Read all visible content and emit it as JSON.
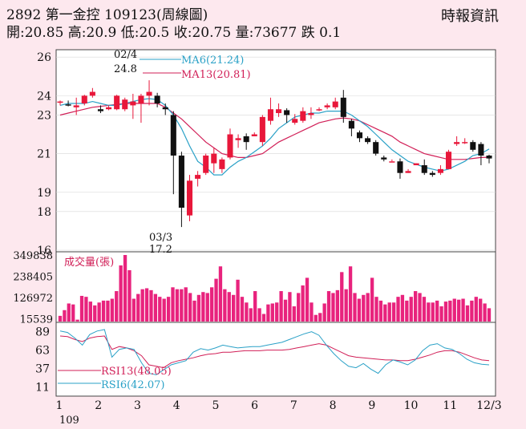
{
  "header": {
    "line1": "2892  第一金控 109123(周線圖)",
    "line2": "開:20.85 高:20.9 低:20.5 收:20.75 量:73677 跌 0.1",
    "brand": "時報資訊"
  },
  "colors": {
    "up": "#e8173a",
    "down": "#111111",
    "ma6": "#2aa1c7",
    "ma13": "#d11f57",
    "volume": "#e8237d",
    "background": "#fde8ee"
  },
  "chart_data": [
    {
      "type": "candlestick",
      "yticks": [
        16,
        18,
        19,
        21,
        23,
        24,
        26
      ],
      "ylim": [
        16,
        26.3
      ],
      "annotations": [
        {
          "text": "02/4",
          "week": 11
        },
        {
          "text": "24.8",
          "week": 11
        },
        {
          "text": "03/3",
          "week": 16
        },
        {
          "text": "17.2",
          "week": 16
        }
      ],
      "legend": [
        {
          "label": "MA6(21.24)",
          "color": "#2aa1c7"
        },
        {
          "label": "MA13(20.81)",
          "color": "#d11f57"
        }
      ],
      "candles": [
        [
          23.65,
          23.75,
          23.5,
          23.7
        ],
        [
          23.55,
          23.75,
          23.45,
          23.5
        ],
        [
          23.4,
          23.9,
          23.0,
          23.5
        ],
        [
          23.6,
          24.05,
          23.5,
          24.0
        ],
        [
          24.0,
          24.4,
          23.9,
          24.2
        ],
        [
          23.3,
          23.5,
          23.1,
          23.2
        ],
        [
          23.3,
          23.5,
          23.25,
          23.4
        ],
        [
          23.3,
          24.05,
          23.25,
          24.0
        ],
        [
          23.3,
          23.9,
          23.2,
          23.8
        ],
        [
          23.5,
          24.1,
          22.8,
          23.7
        ],
        [
          23.6,
          24.1,
          22.6,
          24.0
        ],
        [
          24.0,
          24.8,
          23.5,
          24.2
        ],
        [
          24.0,
          24.15,
          23.4,
          23.6
        ],
        [
          23.4,
          23.6,
          23.0,
          23.3
        ],
        [
          23.0,
          23.2,
          18.9,
          20.9
        ],
        [
          20.9,
          21.1,
          17.2,
          18.2
        ],
        [
          17.8,
          19.9,
          17.5,
          19.6
        ],
        [
          19.7,
          20.1,
          19.3,
          19.9
        ],
        [
          20.0,
          21.0,
          19.9,
          20.9
        ],
        [
          20.5,
          21.3,
          20.0,
          21.0
        ],
        [
          20.2,
          20.8,
          20.0,
          20.7
        ],
        [
          20.8,
          22.3,
          20.7,
          22.0
        ],
        [
          21.7,
          22.0,
          21.3,
          21.8
        ],
        [
          21.9,
          22.05,
          21.2,
          21.6
        ],
        [
          21.9,
          22.1,
          21.9,
          22.0
        ],
        [
          21.6,
          23.0,
          21.4,
          22.9
        ],
        [
          22.7,
          23.9,
          22.5,
          23.3
        ],
        [
          23.1,
          23.6,
          22.9,
          23.3
        ],
        [
          23.25,
          23.35,
          22.6,
          23.0
        ],
        [
          22.6,
          23.05,
          22.5,
          22.8
        ],
        [
          22.7,
          23.4,
          22.6,
          23.2
        ],
        [
          23.0,
          23.4,
          22.8,
          23.1
        ],
        [
          23.3,
          23.4,
          23.2,
          23.3
        ],
        [
          23.4,
          23.6,
          23.3,
          23.5
        ],
        [
          23.4,
          23.9,
          23.3,
          23.7
        ],
        [
          23.9,
          24.3,
          22.6,
          22.9
        ],
        [
          22.7,
          22.8,
          21.9,
          22.3
        ],
        [
          22.1,
          22.2,
          21.6,
          21.8
        ],
        [
          21.8,
          21.9,
          21.5,
          21.6
        ],
        [
          21.6,
          21.7,
          20.9,
          21.0
        ],
        [
          20.8,
          20.9,
          20.6,
          20.7
        ],
        [
          20.6,
          20.7,
          20.6,
          20.6
        ],
        [
          20.6,
          20.75,
          19.7,
          20.0
        ],
        [
          20.0,
          20.2,
          20.0,
          20.1
        ],
        [
          20.4,
          20.5,
          20.4,
          20.5
        ],
        [
          20.4,
          20.7,
          19.9,
          20.0
        ],
        [
          20.0,
          20.1,
          19.8,
          19.9
        ],
        [
          20.0,
          20.4,
          19.9,
          20.2
        ],
        [
          20.2,
          21.2,
          20.2,
          21.1
        ],
        [
          21.5,
          21.9,
          21.4,
          21.6
        ],
        [
          21.6,
          21.8,
          21.5,
          21.6
        ],
        [
          21.6,
          21.7,
          21.1,
          21.2
        ],
        [
          21.5,
          21.6,
          20.4,
          20.9
        ],
        [
          20.9,
          20.95,
          20.5,
          20.75
        ]
      ],
      "ma6": [
        23.5,
        23.6,
        23.6,
        23.6,
        23.7,
        23.6,
        23.5,
        23.5,
        23.6,
        23.7,
        23.8,
        23.85,
        23.8,
        23.5,
        23.0,
        22.3,
        21.4,
        20.6,
        20.3,
        19.9,
        19.9,
        20.3,
        20.6,
        20.8,
        21.1,
        21.4,
        21.8,
        22.3,
        22.6,
        22.9,
        23.0,
        23.1,
        23.1,
        23.2,
        23.2,
        23.2,
        23.0,
        22.7,
        22.4,
        22.0,
        21.6,
        21.2,
        20.9,
        20.6,
        20.45,
        20.3,
        20.2,
        20.1,
        20.2,
        20.4,
        20.6,
        20.9,
        21.0,
        21.24
      ],
      "ma13": [
        23.0,
        23.1,
        23.2,
        23.3,
        23.4,
        23.45,
        23.5,
        23.55,
        23.6,
        23.6,
        23.6,
        23.6,
        23.6,
        23.4,
        23.1,
        22.8,
        22.4,
        22.0,
        21.6,
        21.3,
        21.0,
        20.9,
        20.8,
        20.8,
        20.9,
        21.0,
        21.3,
        21.6,
        21.8,
        22.0,
        22.2,
        22.4,
        22.6,
        22.7,
        22.8,
        22.85,
        22.8,
        22.7,
        22.5,
        22.3,
        22.1,
        21.9,
        21.6,
        21.4,
        21.2,
        21.0,
        20.9,
        20.8,
        20.7,
        20.7,
        20.7,
        20.75,
        20.8,
        20.81
      ]
    },
    {
      "type": "bar",
      "title": "成交量(張)",
      "yticks": [
        15539,
        126972,
        238405,
        349838
      ],
      "ylim": [
        0,
        349838
      ],
      "values": [
        30000,
        60000,
        95000,
        90000,
        10000,
        135000,
        130000,
        105000,
        85000,
        100000,
        110000,
        110000,
        120000,
        160000,
        295000,
        349838,
        270000,
        120000,
        145000,
        170000,
        175000,
        165000,
        145000,
        130000,
        120000,
        130000,
        180000,
        170000,
        170000,
        180000,
        150000,
        110000,
        140000,
        155000,
        150000,
        180000,
        225000,
        290000,
        170000,
        155000,
        140000,
        220000,
        130000,
        100000,
        70000,
        160000,
        70000,
        40000,
        90000,
        95000,
        100000,
        160000,
        115000,
        155000,
        80000,
        150000,
        190000,
        230000,
        100000,
        35000,
        45000,
        95000,
        160000,
        150000,
        165000,
        260000,
        170000,
        290000,
        150000,
        120000,
        140000,
        150000,
        230000,
        130000,
        110000,
        90000,
        100000,
        100000,
        130000,
        140000,
        110000,
        130000,
        160000,
        150000,
        130000,
        100000,
        100000,
        110000,
        80000,
        105000,
        110000,
        120000,
        115000,
        120000,
        85000,
        110000,
        130000,
        120000,
        95000,
        70000
      ]
    },
    {
      "type": "line",
      "yticks": [
        11,
        37,
        63,
        89
      ],
      "ylim": [
        0,
        100
      ],
      "legend": [
        {
          "label": "RSI13(48.05)",
          "color": "#d11f57"
        },
        {
          "label": "RSI6(42.07)",
          "color": "#2aa1c7"
        }
      ],
      "series": [
        {
          "name": "RSI13(48.05)",
          "values": [
            83,
            82,
            78,
            75,
            80,
            82,
            83,
            64,
            68,
            66,
            62,
            55,
            42,
            40,
            38,
            45,
            48,
            50,
            52,
            55,
            57,
            58,
            60,
            60,
            61,
            62,
            62,
            62,
            63,
            63,
            63,
            64,
            66,
            68,
            70,
            72,
            70,
            65,
            60,
            55,
            53,
            52,
            51,
            50,
            49,
            49,
            48,
            48,
            50,
            53,
            56,
            60,
            62,
            62,
            60,
            56,
            52,
            49,
            48.05
          ]
        },
        {
          "name": "RSI6(42.07)",
          "values": [
            90,
            88,
            80,
            70,
            85,
            90,
            92,
            53,
            64,
            66,
            64,
            45,
            30,
            28,
            35,
            42,
            45,
            48,
            60,
            65,
            63,
            66,
            70,
            68,
            66,
            67,
            68,
            68,
            70,
            72,
            74,
            78,
            82,
            86,
            89,
            84,
            70,
            58,
            48,
            40,
            38,
            44,
            36,
            30,
            42,
            49,
            46,
            42,
            49,
            62,
            70,
            72,
            66,
            64,
            58,
            50,
            45,
            43,
            42.07
          ]
        }
      ]
    }
  ],
  "xaxis": {
    "labels": [
      "1",
      "2",
      "3",
      "4",
      "5",
      "6",
      "7",
      "8",
      "9",
      "10",
      "11",
      "12/3"
    ],
    "year": "109"
  }
}
